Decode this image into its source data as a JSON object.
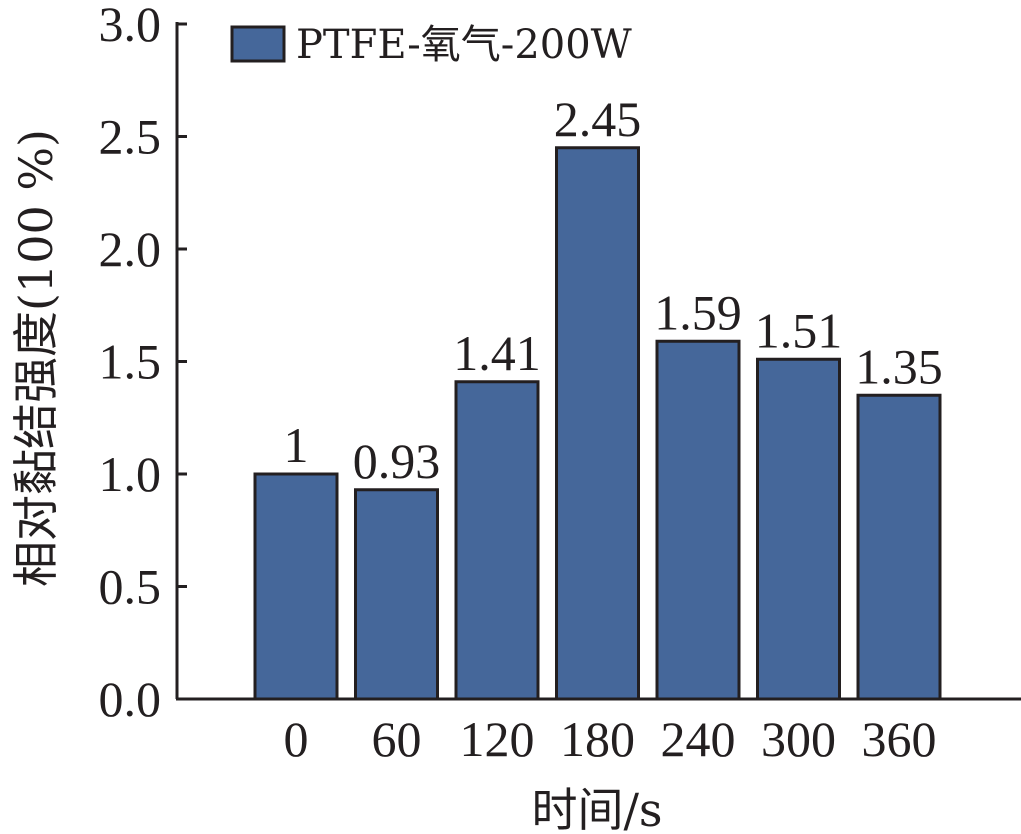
{
  "chart_data": {
    "type": "bar",
    "categories": [
      "0",
      "60",
      "120",
      "180",
      "240",
      "300",
      "360"
    ],
    "series": [
      {
        "name": "PTFE-氧气-200W",
        "values": [
          1,
          0.93,
          1.41,
          2.45,
          1.59,
          1.51,
          1.35
        ],
        "color": "#45679a"
      }
    ],
    "data_labels": [
      "1",
      "0.93",
      "1.41",
      "2.45",
      "1.59",
      "1.51",
      "1.35"
    ],
    "y_ticks": [
      "0.0",
      "0.5",
      "1.0",
      "1.5",
      "2.0",
      "2.5",
      "3.0"
    ],
    "ylim": [
      0,
      3
    ],
    "xlabel": "时间/s",
    "ylabel": "相对黏结强度(100 %)",
    "legend": {
      "position": "top-left"
    },
    "grid": false,
    "colors": {
      "bar_fill": "#45679a",
      "bar_edge": "#231f20",
      "axis": "#231f20"
    }
  }
}
